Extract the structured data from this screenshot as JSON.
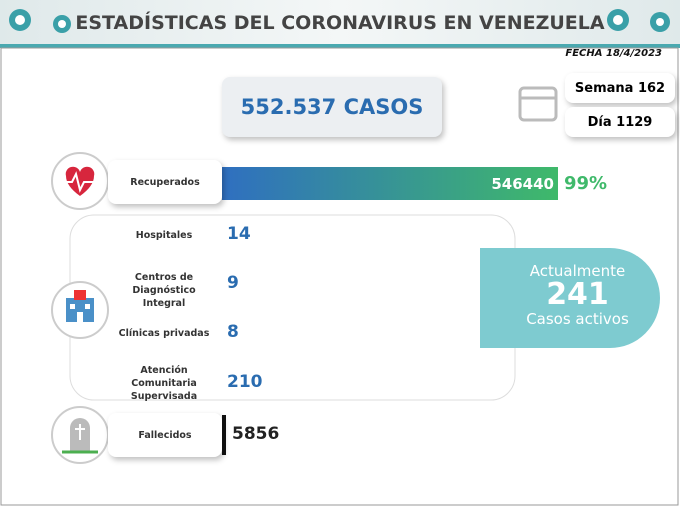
{
  "header": {
    "title": "ESTADÍSTICAS DEL CORONAVIRUS EN VENEZUELA",
    "date": "FECHA 18/4/2023"
  },
  "total": "552.537 CASOS",
  "week": "Semana 162",
  "day": "Día 1129",
  "recovered": {
    "label": "Recuperados",
    "value": "546440",
    "percent": "99%"
  },
  "locations": [
    {
      "label": [
        "Hospitales"
      ],
      "value": "14"
    },
    {
      "label": [
        "Centros de",
        "Diagnóstico Integral"
      ],
      "value": "9"
    },
    {
      "label": [
        "Clínicas privadas"
      ],
      "value": "8"
    },
    {
      "label": [
        "Atención",
        "Comunitaria",
        "Supervisada"
      ],
      "value": "210"
    }
  ],
  "active": {
    "top": "Actualmente",
    "value": "241",
    "bottom": "Casos activos"
  },
  "deaths": {
    "label": "Fallecidos",
    "value": "5856"
  }
}
